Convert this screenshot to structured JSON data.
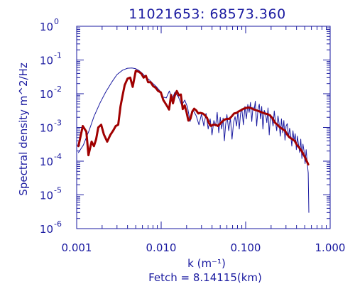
{
  "chart_data": {
    "type": "line",
    "title": "11021653: 68573.360",
    "xlabel": "k (m⁻¹)",
    "ylabel": "Spectral density m^2/Hz",
    "footer": "Fetch = 8.14115(km)",
    "x_scale": "log",
    "y_scale": "log",
    "xlim": [
      0.001,
      1.0
    ],
    "ylim": [
      1e-06,
      1.0
    ],
    "grid": false,
    "x_ticks": [
      {
        "value": 0.001,
        "label": "0.001"
      },
      {
        "value": 0.01,
        "label": "0.010"
      },
      {
        "value": 0.1,
        "label": "0.100"
      },
      {
        "value": 1.0,
        "label": "1.000"
      }
    ],
    "y_ticks": [
      {
        "value": 1e-06,
        "label": "10",
        "exp": "-6"
      },
      {
        "value": 1e-05,
        "label": "10",
        "exp": "-5"
      },
      {
        "value": 0.0001,
        "label": "10",
        "exp": "-4"
      },
      {
        "value": 0.001,
        "label": "10",
        "exp": "-3"
      },
      {
        "value": 0.01,
        "label": "10",
        "exp": "-2"
      },
      {
        "value": 0.1,
        "label": "10",
        "exp": "-1"
      },
      {
        "value": 1,
        "label": "10",
        "exp": "0"
      }
    ],
    "colors": {
      "axes": "#1a1aa0",
      "measured": "#1a1aa0",
      "model": "#a00000"
    },
    "series": [
      {
        "color": "#1a1aa0",
        "width": 1,
        "x": [
          0.00105,
          0.0012,
          0.0014,
          0.0016,
          0.0019,
          0.0022,
          0.0026,
          0.003,
          0.0035,
          0.004,
          0.0045,
          0.005,
          0.0055,
          0.006,
          0.0065,
          0.0072,
          0.008,
          0.0088,
          0.0097,
          0.0105,
          0.0115,
          0.0125,
          0.0135,
          0.0145,
          0.016,
          0.0175,
          0.019,
          0.0205,
          0.022,
          0.024,
          0.026,
          0.028,
          0.03,
          0.032,
          0.034,
          0.036,
          0.038,
          0.04,
          0.042,
          0.044,
          0.046,
          0.048,
          0.05,
          0.052,
          0.054,
          0.056,
          0.058,
          0.06,
          0.063,
          0.066,
          0.069,
          0.072,
          0.075,
          0.078,
          0.081,
          0.084,
          0.087,
          0.09,
          0.094,
          0.098,
          0.102,
          0.106,
          0.11,
          0.114,
          0.118,
          0.122,
          0.126,
          0.13,
          0.135,
          0.14,
          0.145,
          0.15,
          0.155,
          0.16,
          0.166,
          0.172,
          0.178,
          0.184,
          0.19,
          0.197,
          0.204,
          0.211,
          0.218,
          0.225,
          0.233,
          0.241,
          0.249,
          0.257,
          0.265,
          0.274,
          0.283,
          0.292,
          0.301,
          0.311,
          0.321,
          0.331,
          0.341,
          0.352,
          0.363,
          0.374,
          0.386,
          0.398,
          0.41,
          0.423,
          0.436,
          0.449,
          0.463,
          0.477,
          0.491,
          0.505,
          0.52,
          0.535,
          0.55,
          0.56
        ],
        "y": [
          0.00018,
          0.0003,
          0.0008,
          0.0021,
          0.0055,
          0.011,
          0.022,
          0.037,
          0.05,
          0.057,
          0.058,
          0.055,
          0.048,
          0.04,
          0.032,
          0.026,
          0.02,
          0.016,
          0.012,
          0.008,
          0.0075,
          0.012,
          0.007,
          0.011,
          0.008,
          0.0045,
          0.0065,
          0.004,
          0.0015,
          0.0032,
          0.0022,
          0.0012,
          0.0025,
          0.0011,
          0.0026,
          0.0009,
          0.0018,
          0.0006,
          0.0016,
          0.0011,
          0.0028,
          0.0007,
          0.002,
          0.0009,
          0.0019,
          0.0004,
          0.0012,
          0.0024,
          0.0008,
          0.0019,
          0.00045,
          0.0014,
          0.0021,
          0.0011,
          0.0031,
          0.0009,
          0.0026,
          0.0036,
          0.0012,
          0.0042,
          0.0018,
          0.0048,
          0.0028,
          0.0055,
          0.0015,
          0.004,
          0.0032,
          0.006,
          0.0011,
          0.0035,
          0.0049,
          0.0018,
          0.0042,
          0.0009,
          0.0032,
          0.0026,
          0.0014,
          0.0038,
          0.0006,
          0.0024,
          0.0019,
          0.0011,
          0.0031,
          0.0015,
          0.0008,
          0.0022,
          0.0013,
          0.00055,
          0.0018,
          0.0007,
          0.0016,
          0.00042,
          0.0011,
          0.0013,
          0.0005,
          0.00095,
          0.0006,
          0.00028,
          0.0008,
          0.0004,
          0.00065,
          0.00022,
          0.00055,
          0.0003,
          0.00018,
          0.00045,
          0.00012,
          0.00032,
          0.0002,
          8.5e-05,
          0.00022,
          9e-05,
          4.5e-05,
          3e-06
        ]
      },
      {
        "color": "#a00000",
        "width": 3,
        "x": [
          0.00105,
          0.00118,
          0.0013,
          0.00138,
          0.0015,
          0.0016,
          0.0017,
          0.0018,
          0.00195,
          0.0021,
          0.0023,
          0.0025,
          0.0027,
          0.0029,
          0.0031,
          0.0033,
          0.0035,
          0.0037,
          0.004,
          0.0043,
          0.0046,
          0.005,
          0.0054,
          0.0058,
          0.0062,
          0.0066,
          0.007,
          0.0075,
          0.008,
          0.0086,
          0.0092,
          0.0099,
          0.0106,
          0.0112,
          0.0118,
          0.0124,
          0.0131,
          0.0138,
          0.0145,
          0.0153,
          0.0162,
          0.0171,
          0.018,
          0.019,
          0.02,
          0.021,
          0.0222,
          0.0234,
          0.0246,
          0.026,
          0.0275,
          0.029,
          0.031,
          0.033,
          0.035,
          0.037,
          0.039,
          0.041,
          0.044,
          0.047,
          0.05,
          0.053,
          0.056,
          0.06,
          0.064,
          0.068,
          0.073,
          0.078,
          0.083,
          0.089,
          0.095,
          0.102,
          0.109,
          0.117,
          0.126,
          0.135,
          0.145,
          0.156,
          0.168,
          0.18,
          0.193,
          0.207,
          0.222,
          0.238,
          0.255,
          0.273,
          0.292,
          0.312,
          0.333,
          0.356,
          0.38,
          0.405,
          0.432,
          0.46,
          0.49,
          0.52,
          0.55
        ],
        "y": [
          0.00028,
          0.0011,
          0.00075,
          0.00015,
          0.00038,
          0.00028,
          0.00045,
          0.001,
          0.0012,
          0.00062,
          0.00038,
          0.0006,
          0.0008,
          0.0011,
          0.0012,
          0.0042,
          0.009,
          0.018,
          0.028,
          0.03,
          0.016,
          0.048,
          0.045,
          0.04,
          0.03,
          0.034,
          0.022,
          0.022,
          0.017,
          0.015,
          0.012,
          0.011,
          0.0065,
          0.0052,
          0.0042,
          0.0034,
          0.0092,
          0.0052,
          0.0088,
          0.012,
          0.009,
          0.0095,
          0.0035,
          0.0045,
          0.0028,
          0.0016,
          0.0018,
          0.003,
          0.0036,
          0.0032,
          0.0026,
          0.0027,
          0.0026,
          0.0023,
          0.0019,
          0.0013,
          0.0011,
          0.0012,
          0.0012,
          0.0011,
          0.0013,
          0.0015,
          0.0017,
          0.0018,
          0.0018,
          0.0021,
          0.0026,
          0.0027,
          0.003,
          0.0033,
          0.0036,
          0.0038,
          0.0039,
          0.0037,
          0.0034,
          0.0032,
          0.003,
          0.0028,
          0.0026,
          0.0025,
          0.0023,
          0.0019,
          0.0014,
          0.0012,
          0.001,
          0.0009,
          0.0008,
          0.0006,
          0.0005,
          0.00045,
          0.0004,
          0.0003,
          0.00025,
          0.0002,
          0.00015,
          0.00011,
          8e-05
        ]
      }
    ]
  }
}
